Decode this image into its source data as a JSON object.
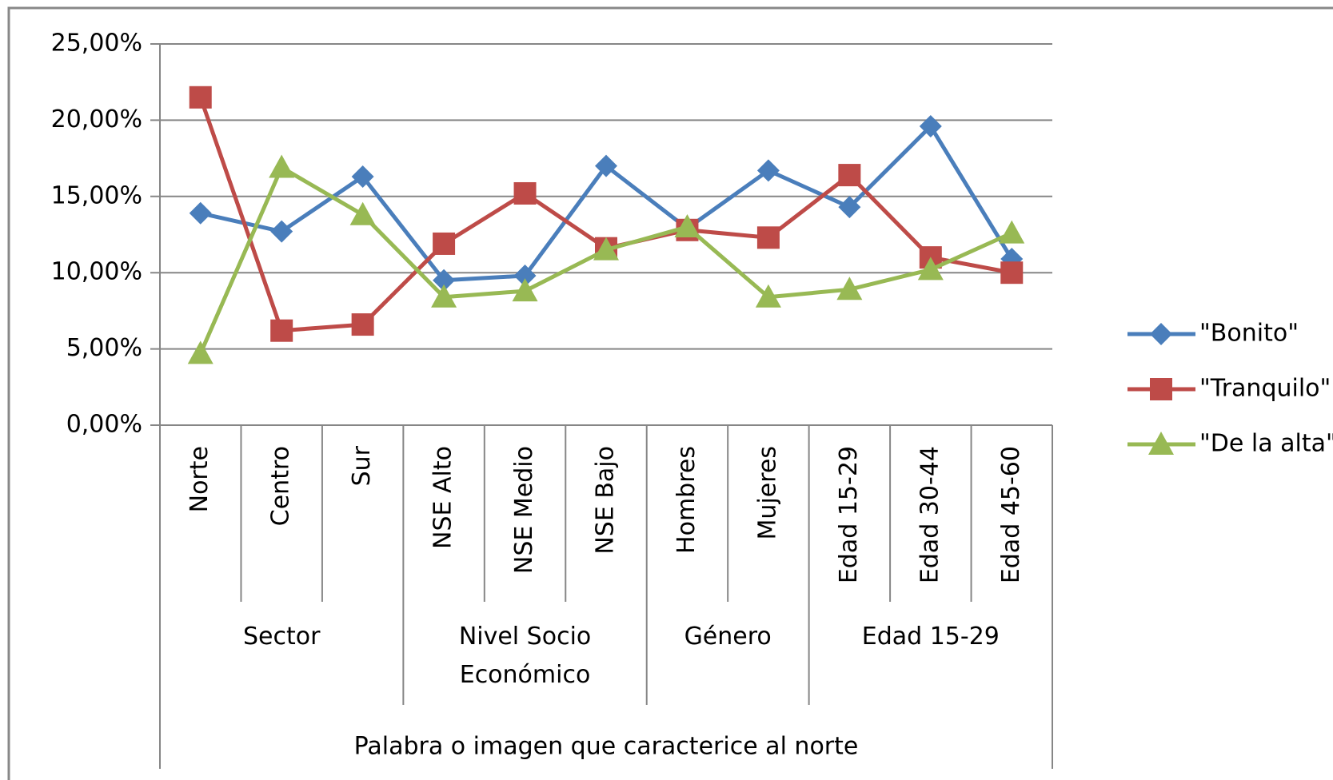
{
  "chart_data": {
    "type": "line",
    "groups": [
      {
        "name": "Sector",
        "categories": [
          "Norte",
          "Centro",
          "Sur"
        ]
      },
      {
        "name": "Nivel Socio Económico",
        "categories": [
          "NSE Alto",
          "NSE Medio",
          "NSE Bajo"
        ]
      },
      {
        "name": "Género",
        "categories": [
          "Hombres",
          "Mujeres"
        ]
      },
      {
        "name": "Edad 15-29",
        "categories": [
          "Edad 15-29",
          "Edad 30-44",
          "Edad 45-60"
        ]
      }
    ],
    "x_label": "Palabra o imagen que caracterice al norte",
    "series": [
      {
        "name": "\"Bonito\"",
        "color": "#4a7ebb",
        "marker": "diamond",
        "values": [
          13.9,
          12.7,
          16.3,
          9.5,
          9.8,
          17.0,
          12.9,
          16.7,
          14.3,
          19.6,
          10.9
        ]
      },
      {
        "name": "\"Tranquilo\"",
        "color": "#be4b48",
        "marker": "square",
        "values": [
          21.5,
          6.2,
          6.6,
          11.9,
          15.2,
          11.6,
          12.8,
          12.3,
          16.4,
          11.0,
          10.0
        ]
      },
      {
        "name": "\"De la alta\"",
        "color": "#98b954",
        "marker": "triangle",
        "values": [
          4.7,
          16.9,
          13.8,
          8.4,
          8.8,
          11.5,
          13.0,
          8.4,
          8.9,
          10.2,
          12.6
        ]
      }
    ],
    "ylim": [
      0,
      25
    ],
    "yticks": [
      {
        "value": 0,
        "label": "0,00%"
      },
      {
        "value": 5,
        "label": "5,00%"
      },
      {
        "value": 10,
        "label": "10,00%"
      },
      {
        "value": 15,
        "label": "15,00%"
      },
      {
        "value": 20,
        "label": "20,00%"
      },
      {
        "value": 25,
        "label": "25,00%"
      }
    ],
    "grid": true,
    "legend": "right"
  }
}
